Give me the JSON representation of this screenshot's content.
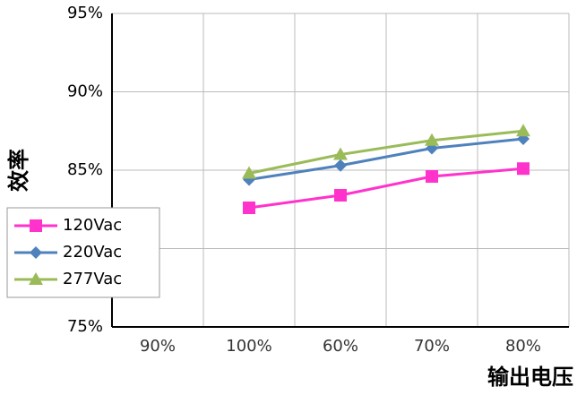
{
  "chart_data": {
    "type": "line",
    "x_label": "输出电压",
    "y_label": "效率",
    "categories": [
      "90%",
      "100%",
      "60%",
      "70%",
      "80%"
    ],
    "series": [
      {
        "name": "120Vac",
        "color": "#ff33cc",
        "marker": "square",
        "values": [
          null,
          82.6,
          83.4,
          84.6,
          85.1
        ]
      },
      {
        "name": "220Vac",
        "color": "#4f81bd",
        "marker": "diamond",
        "values": [
          null,
          84.4,
          85.3,
          86.4,
          87.0
        ]
      },
      {
        "name": "277Vac",
        "color": "#9bbb59",
        "marker": "triangle",
        "values": [
          null,
          84.8,
          86.0,
          86.9,
          87.5
        ]
      }
    ],
    "ylim": [
      75,
      95
    ],
    "yticks": [
      {
        "value": 75,
        "label": "75%"
      },
      {
        "value": 80,
        "label": "80%"
      },
      {
        "value": 85,
        "label": "85%"
      },
      {
        "value": 90,
        "label": "90%"
      },
      {
        "value": 95,
        "label": "95%"
      }
    ],
    "grid": true
  }
}
